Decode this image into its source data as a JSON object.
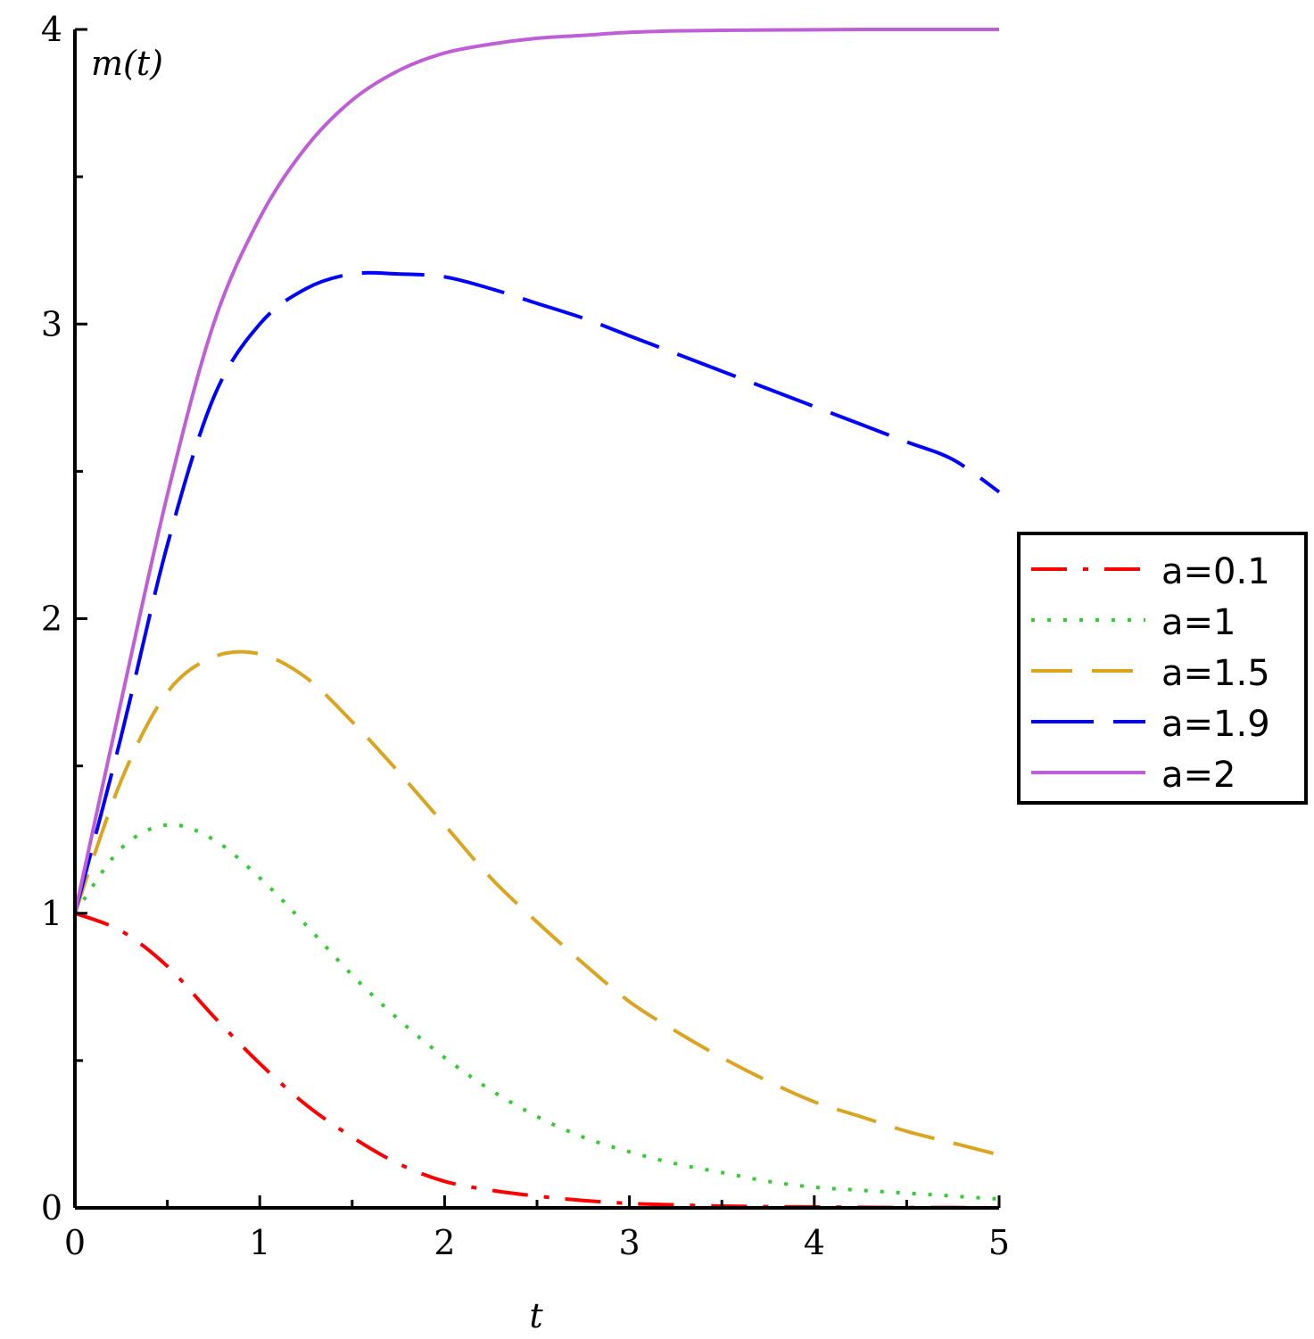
{
  "chart_data": {
    "type": "line",
    "xlabel": "t",
    "ylabel": "m(t)",
    "xlim": [
      0,
      5
    ],
    "ylim": [
      0,
      4
    ],
    "x_ticks": [
      "0",
      "1",
      "2",
      "3",
      "4",
      "5"
    ],
    "y_ticks": [
      "0",
      "1",
      "2",
      "3",
      "4"
    ],
    "grid": false,
    "legend_position": "right",
    "x": [
      0,
      0.25,
      0.5,
      0.75,
      1,
      1.25,
      1.5,
      1.75,
      2,
      2.25,
      2.5,
      2.75,
      3,
      3.25,
      3.5,
      3.75,
      4,
      4.25,
      4.5,
      4.75,
      5
    ],
    "series": [
      {
        "name": "a=0.1",
        "color": "#ff0000",
        "style": "dashdot",
        "values": [
          1.0,
          0.94,
          0.82,
          0.65,
          0.49,
          0.35,
          0.24,
          0.15,
          0.09,
          0.06,
          0.04,
          0.025,
          0.015,
          0.01,
          0.006,
          0.004,
          0.003,
          0.002,
          0.001,
          0.001,
          0.0
        ]
      },
      {
        "name": "a=1",
        "color": "#33cc33",
        "style": "dotted",
        "values": [
          1.0,
          1.22,
          1.3,
          1.25,
          1.12,
          0.96,
          0.79,
          0.64,
          0.51,
          0.4,
          0.31,
          0.24,
          0.19,
          0.15,
          0.12,
          0.09,
          0.07,
          0.06,
          0.05,
          0.04,
          0.03
        ]
      },
      {
        "name": "a=1.5",
        "color": "#daa520",
        "style": "dashed",
        "values": [
          1.0,
          1.45,
          1.75,
          1.87,
          1.88,
          1.8,
          1.65,
          1.48,
          1.3,
          1.12,
          0.97,
          0.83,
          0.7,
          0.6,
          0.51,
          0.43,
          0.36,
          0.31,
          0.26,
          0.22,
          0.18
        ]
      },
      {
        "name": "a=1.9",
        "color": "#0000ff",
        "style": "longdash",
        "values": [
          1.0,
          1.6,
          2.25,
          2.75,
          3.0,
          3.12,
          3.17,
          3.17,
          3.16,
          3.12,
          3.07,
          3.02,
          2.96,
          2.9,
          2.84,
          2.78,
          2.72,
          2.66,
          2.6,
          2.54,
          2.43
        ]
      },
      {
        "name": "a=2",
        "color": "#bf5fd6",
        "style": "solid",
        "values": [
          1.0,
          1.72,
          2.42,
          3.0,
          3.36,
          3.6,
          3.76,
          3.86,
          3.92,
          3.95,
          3.97,
          3.98,
          3.99,
          3.995,
          3.997,
          3.998,
          3.999,
          4.0,
          4.0,
          4.0,
          4.0
        ]
      }
    ]
  }
}
